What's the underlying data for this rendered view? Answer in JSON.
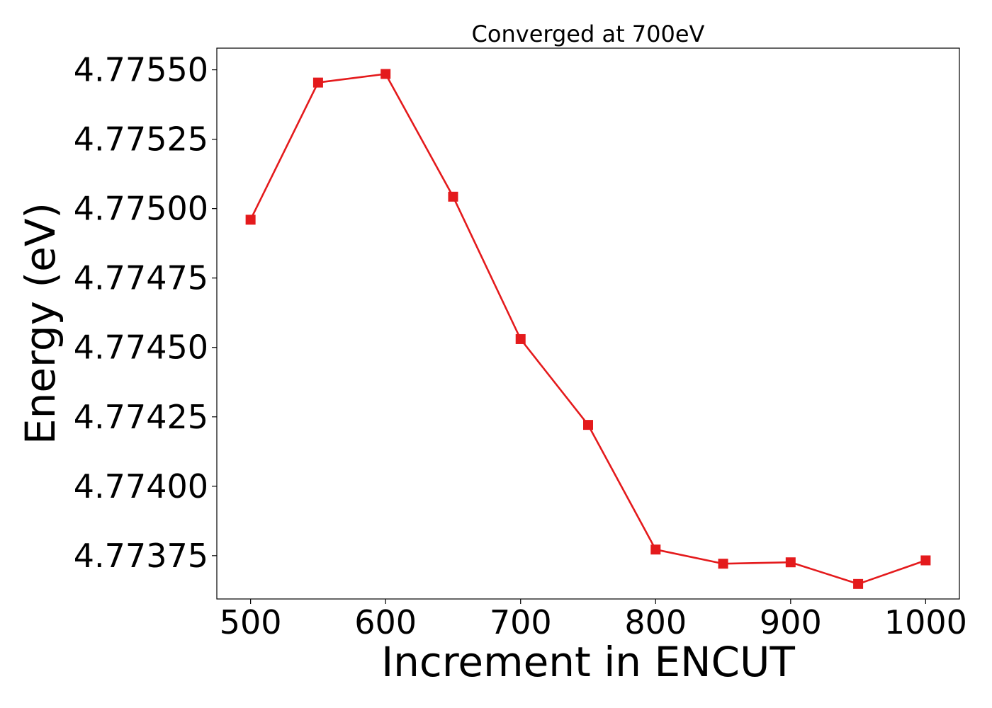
{
  "chart_data": {
    "type": "line",
    "title": "Converged at 700eV",
    "xlabel": "Increment in ENCUT",
    "ylabel": "Energy (eV)",
    "x": [
      500,
      550,
      600,
      650,
      700,
      750,
      800,
      850,
      900,
      950,
      1000
    ],
    "series": [
      {
        "values": [
          4.77496,
          4.775454,
          4.775485,
          4.775043,
          4.77453,
          4.774221,
          4.773772,
          4.773721,
          4.773726,
          4.773648,
          4.773733
        ]
      }
    ],
    "xlim": [
      475,
      1025
    ],
    "ylim": [
      4.773594,
      4.775578
    ],
    "xticks": [
      500,
      600,
      700,
      800,
      900,
      1000
    ],
    "xtick_labels": [
      "500",
      "600",
      "700",
      "800",
      "900",
      "1000"
    ],
    "yticks": [
      4.77375,
      4.774,
      4.77425,
      4.7745,
      4.77475,
      4.775,
      4.77525,
      4.7755
    ],
    "ytick_labels": [
      "4.77375",
      "4.77400",
      "4.77425",
      "4.77450",
      "4.77475",
      "4.77500",
      "4.77525",
      "4.77550"
    ],
    "grid": false,
    "marker": "square",
    "colors": {
      "line": "#e41a1c",
      "axes": "#000000",
      "background": "#ffffff"
    }
  }
}
